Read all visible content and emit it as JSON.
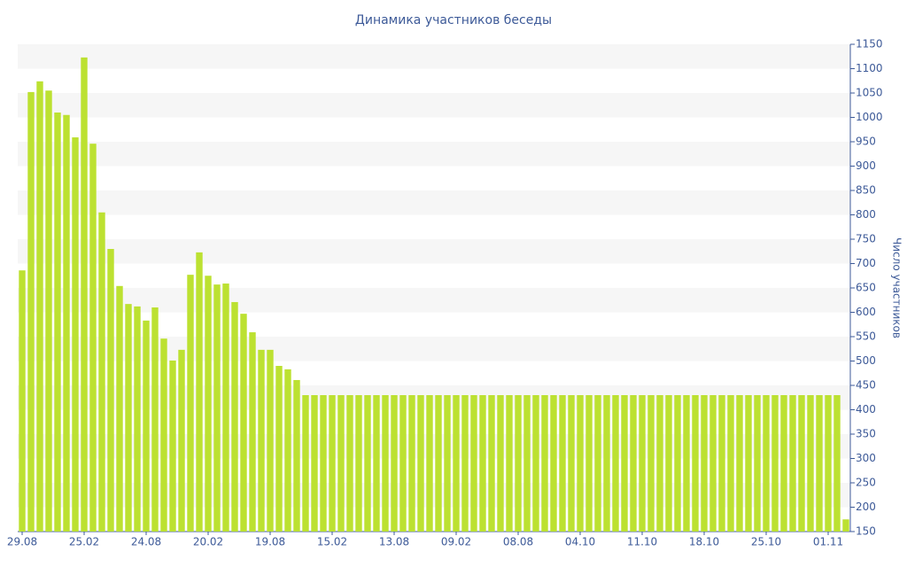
{
  "chart_data": {
    "type": "bar",
    "title": "Динамика участников беседы",
    "y_label": "Число участников",
    "categories": [
      "29.08",
      null,
      null,
      null,
      null,
      null,
      null,
      "25.02",
      null,
      null,
      null,
      null,
      null,
      null,
      "24.08",
      null,
      null,
      null,
      null,
      null,
      null,
      "20.02",
      null,
      null,
      null,
      null,
      null,
      null,
      "19.08",
      null,
      null,
      null,
      null,
      null,
      null,
      "15.02",
      null,
      null,
      null,
      null,
      null,
      null,
      "13.08",
      null,
      null,
      null,
      null,
      null,
      null,
      "09.02",
      null,
      null,
      null,
      null,
      null,
      null,
      "08.08",
      null,
      null,
      null,
      null,
      null,
      null,
      "04.10",
      null,
      null,
      null,
      null,
      null,
      null,
      "11.10",
      null,
      null,
      null,
      null,
      null,
      null,
      "18.10",
      null,
      null,
      null,
      null,
      null,
      null,
      "25.10",
      null,
      null,
      null,
      null,
      null,
      null,
      "01.11",
      null,
      null
    ],
    "values": [
      686,
      1052,
      1074,
      1055,
      1010,
      1005,
      959,
      1123,
      946,
      805,
      730,
      654,
      617,
      612,
      583,
      610,
      546,
      501,
      523,
      677,
      723,
      675,
      657,
      659,
      621,
      597,
      559,
      523,
      523,
      490,
      483,
      461,
      430,
      430,
      430,
      430,
      430,
      430,
      430,
      430,
      430,
      430,
      430,
      430,
      430,
      430,
      430,
      430,
      430,
      430,
      430,
      430,
      430,
      430,
      430,
      430,
      430,
      430,
      430,
      430,
      430,
      430,
      430,
      430,
      430,
      430,
      430,
      430,
      430,
      430,
      430,
      430,
      430,
      430,
      430,
      430,
      430,
      430,
      430,
      430,
      430,
      430,
      430,
      430,
      430,
      430,
      430,
      430,
      430,
      430,
      430,
      430,
      430,
      175
    ],
    "color": "#bce131",
    "ylim": [
      150,
      1150
    ],
    "yticks": [
      150,
      200,
      250,
      300,
      350,
      400,
      450,
      500,
      550,
      600,
      650,
      700,
      750,
      800,
      850,
      900,
      950,
      1000,
      1050,
      1100,
      1150
    ],
    "grid": true,
    "y_axis_side": "right"
  }
}
